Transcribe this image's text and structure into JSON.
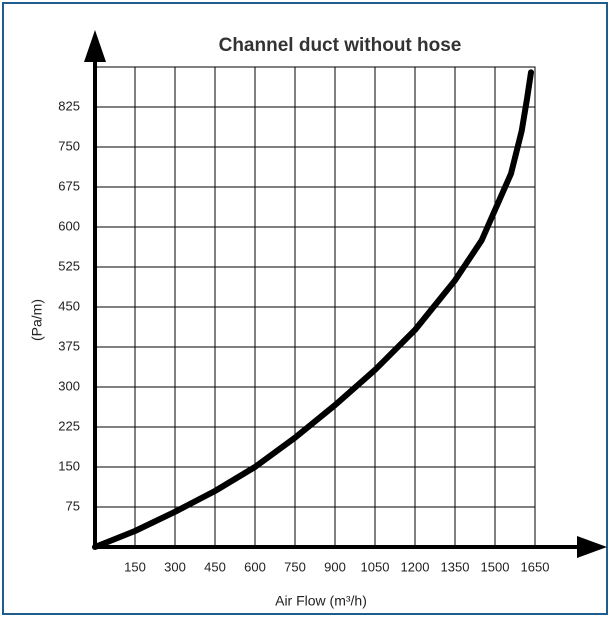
{
  "chart_data": {
    "type": "line",
    "title": "Channel duct without hose",
    "x_label": "Air Flow (m³/h)",
    "y_label": "(Pa/m)",
    "x": [
      0,
      150,
      300,
      450,
      600,
      750,
      900,
      1050,
      1200,
      1350,
      1450,
      1500,
      1560,
      1600,
      1620,
      1635
    ],
    "series": [
      {
        "name": "Channel duct without hose",
        "color": "#000000",
        "values": [
          0,
          30,
          66,
          105,
          150,
          205,
          266,
          332,
          407,
          500,
          575,
          632,
          700,
          780,
          840,
          890
        ]
      }
    ],
    "xlim": [
      0,
      1650
    ],
    "ylim": [
      0,
      900
    ],
    "xticks": [
      150,
      300,
      450,
      600,
      750,
      900,
      1050,
      1200,
      1350,
      1500,
      1650
    ],
    "yticks": [
      75,
      150,
      225,
      300,
      375,
      450,
      525,
      600,
      675,
      750,
      825
    ],
    "grid": true
  }
}
